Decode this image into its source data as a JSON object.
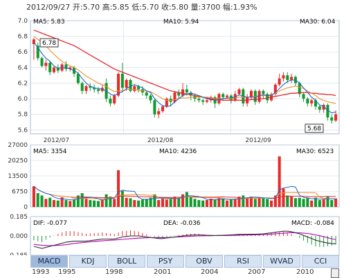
{
  "header": {
    "text": "2012/09/27 开:5.70 高:5.85 低:5.70 收:5.80 量:3700 幅:1.93%"
  },
  "colors": {
    "up": "#e62b2b",
    "down": "#119b2f",
    "ma5": "#1f65c9",
    "ma10": "#f18c2a",
    "ma30": "#e2262b",
    "grid": "#cfd8e6",
    "dif": "#2b2b2b",
    "dea": "#b000b0"
  },
  "tabs": [
    {
      "label": "MACD",
      "active": true
    },
    {
      "label": "KDJ"
    },
    {
      "label": "BOLL"
    },
    {
      "label": "PSY"
    },
    {
      "label": "OBV"
    },
    {
      "label": "RSI"
    },
    {
      "label": "WVAD"
    },
    {
      "label": "CCI"
    }
  ],
  "timeline": {
    "years": [
      "1993",
      "1995",
      "1998",
      "2001",
      "2004",
      "2007",
      "2010"
    ]
  },
  "chart_data": {
    "price_panel": {
      "type": "candlestick",
      "y_ticks": [
        "7.0",
        "6.8",
        "6.6",
        "6.4",
        "6.2",
        "6.0",
        "5.8",
        "5.6"
      ],
      "ylim": [
        5.55,
        7.0
      ],
      "x_labels": [
        "2012/07",
        "2012/08",
        "2012/09"
      ],
      "legend": {
        "ma5": "MA5: 5.83",
        "ma10": "MA10: 5.94",
        "ma30": "MA30: 6.04"
      },
      "annotations": {
        "high": "6.78",
        "low": "5.68"
      },
      "candles": [
        [
          6.7,
          6.76,
          6.78,
          6.5
        ],
        [
          6.68,
          6.52,
          6.72,
          6.49
        ],
        [
          6.52,
          6.42,
          6.54,
          6.4
        ],
        [
          6.42,
          6.46,
          6.5,
          6.36
        ],
        [
          6.46,
          6.34,
          6.48,
          6.3
        ],
        [
          6.34,
          6.4,
          6.42,
          6.32
        ],
        [
          6.4,
          6.36,
          6.44,
          6.33
        ],
        [
          6.36,
          6.44,
          6.46,
          6.34
        ],
        [
          6.44,
          6.38,
          6.48,
          6.35
        ],
        [
          6.38,
          6.4,
          6.42,
          6.35
        ],
        [
          6.4,
          6.32,
          6.42,
          6.28
        ],
        [
          6.32,
          6.2,
          6.34,
          6.18
        ],
        [
          6.2,
          6.1,
          6.22,
          6.06
        ],
        [
          6.1,
          6.16,
          6.18,
          6.06
        ],
        [
          6.16,
          6.14,
          6.2,
          6.1
        ],
        [
          6.14,
          6.12,
          6.18,
          6.08
        ],
        [
          6.12,
          6.1,
          6.15,
          6.06
        ],
        [
          6.1,
          6.14,
          6.18,
          6.08
        ],
        [
          6.2,
          6.0,
          6.26,
          5.96
        ],
        [
          6.0,
          5.94,
          6.04,
          5.9
        ],
        [
          5.94,
          6.04,
          6.06,
          5.92
        ],
        [
          6.04,
          6.32,
          6.34,
          6.02
        ],
        [
          6.32,
          6.14,
          6.46,
          6.1
        ],
        [
          6.14,
          6.24,
          6.26,
          6.1
        ],
        [
          6.24,
          6.1,
          6.26,
          6.08
        ],
        [
          6.1,
          6.16,
          6.18,
          6.08
        ],
        [
          6.16,
          6.12,
          6.18,
          6.08
        ],
        [
          6.12,
          6.08,
          6.16,
          6.04
        ],
        [
          6.08,
          6.04,
          6.1,
          6.0
        ],
        [
          6.04,
          5.98,
          6.06,
          5.94
        ],
        [
          5.98,
          5.8,
          6.0,
          5.76
        ],
        [
          5.8,
          5.84,
          5.88,
          5.75
        ],
        [
          5.84,
          5.9,
          5.92,
          5.82
        ],
        [
          5.9,
          6.0,
          6.02,
          5.88
        ],
        [
          6.0,
          5.96,
          6.04,
          5.9
        ],
        [
          5.96,
          6.08,
          6.1,
          5.94
        ],
        [
          6.08,
          6.04,
          6.12,
          6.0
        ],
        [
          6.04,
          6.12,
          6.2,
          6.02
        ],
        [
          6.12,
          6.08,
          6.18,
          6.04
        ],
        [
          6.08,
          6.04,
          6.1,
          5.98
        ],
        [
          6.04,
          6.0,
          6.06,
          5.96
        ],
        [
          6.0,
          5.98,
          6.02,
          5.95
        ],
        [
          5.98,
          5.96,
          6.0,
          5.92
        ],
        [
          5.96,
          5.98,
          6.02,
          5.94
        ],
        [
          5.98,
          6.02,
          6.04,
          5.95
        ],
        [
          6.02,
          5.94,
          6.04,
          5.88
        ],
        [
          5.94,
          6.06,
          6.08,
          5.92
        ],
        [
          6.06,
          6.02,
          6.08,
          5.98
        ],
        [
          6.02,
          6.04,
          6.06,
          6.0
        ],
        [
          6.04,
          5.98,
          6.06,
          5.94
        ],
        [
          5.98,
          6.06,
          6.1,
          5.96
        ],
        [
          6.06,
          6.12,
          6.14,
          6.04
        ],
        [
          6.12,
          5.94,
          6.14,
          5.9
        ],
        [
          5.94,
          6.02,
          6.06,
          5.9
        ],
        [
          6.02,
          6.1,
          6.12,
          5.98
        ],
        [
          6.1,
          5.96,
          6.12,
          5.92
        ],
        [
          5.96,
          6.1,
          6.12,
          5.94
        ],
        [
          6.1,
          6.06,
          6.12,
          6.0
        ],
        [
          6.06,
          5.98,
          6.08,
          5.94
        ],
        [
          5.98,
          6.06,
          6.08,
          5.96
        ],
        [
          6.06,
          6.18,
          6.2,
          6.04
        ],
        [
          6.18,
          6.26,
          6.32,
          6.16
        ],
        [
          6.26,
          6.3,
          6.34,
          6.22
        ],
        [
          6.3,
          6.24,
          6.34,
          6.2
        ],
        [
          6.24,
          6.28,
          6.32,
          6.2
        ],
        [
          6.28,
          6.2,
          6.3,
          6.16
        ],
        [
          6.2,
          6.06,
          6.22,
          6.02
        ],
        [
          6.06,
          6.0,
          6.08,
          5.96
        ],
        [
          6.0,
          5.94,
          6.02,
          5.9
        ],
        [
          5.94,
          5.98,
          6.0,
          5.9
        ],
        [
          5.98,
          5.9,
          6.0,
          5.86
        ],
        [
          5.9,
          5.86,
          5.92,
          5.82
        ],
        [
          5.86,
          5.92,
          5.94,
          5.82
        ],
        [
          5.92,
          5.76,
          5.94,
          5.72
        ],
        [
          5.76,
          5.72,
          5.8,
          5.68
        ],
        [
          5.72,
          5.8,
          5.85,
          5.7
        ]
      ],
      "ma5": [
        6.72,
        6.66,
        6.58,
        6.52,
        6.48,
        6.42,
        6.39,
        6.4,
        6.4,
        6.38,
        6.36,
        6.33,
        6.26,
        6.2,
        6.16,
        6.14,
        6.13,
        6.12,
        6.1,
        6.06,
        6.04,
        6.07,
        6.09,
        6.13,
        6.16,
        6.18,
        6.16,
        6.14,
        6.1,
        6.08,
        6.0,
        5.95,
        5.91,
        5.9,
        5.91,
        5.96,
        6.0,
        6.04,
        6.06,
        6.07,
        6.06,
        6.04,
        6.02,
        6.0,
        5.99,
        5.98,
        5.99,
        6.0,
        6.01,
        6.01,
        6.02,
        6.05,
        6.03,
        6.02,
        6.02,
        6.02,
        6.04,
        6.05,
        6.04,
        6.04,
        6.08,
        6.13,
        6.18,
        6.22,
        6.24,
        6.24,
        6.2,
        6.14,
        6.08,
        6.02,
        5.98,
        5.92,
        5.9,
        5.85,
        5.82,
        5.83
      ],
      "ma10": [
        6.8,
        6.76,
        6.72,
        6.68,
        6.62,
        6.57,
        6.52,
        6.48,
        6.45,
        6.42,
        6.4,
        6.37,
        6.33,
        6.29,
        6.26,
        6.23,
        6.2,
        6.18,
        6.16,
        6.12,
        6.09,
        6.1,
        6.1,
        6.12,
        6.12,
        6.12,
        6.11,
        6.1,
        6.1,
        6.09,
        6.06,
        6.03,
        6.0,
        5.98,
        5.98,
        5.99,
        6.0,
        6.01,
        6.01,
        6.02,
        6.02,
        6.02,
        6.02,
        6.02,
        6.01,
        6.0,
        6.0,
        6.0,
        6.0,
        6.0,
        6.01,
        6.02,
        6.02,
        6.02,
        6.02,
        6.03,
        6.04,
        6.04,
        6.04,
        6.05,
        6.07,
        6.1,
        6.12,
        6.14,
        6.15,
        6.16,
        6.15,
        6.13,
        6.1,
        6.07,
        6.04,
        6.0,
        5.98,
        5.96,
        5.95,
        5.94
      ],
      "ma30": [
        6.88,
        6.86,
        6.84,
        6.82,
        6.8,
        6.78,
        6.76,
        6.74,
        6.72,
        6.7,
        6.68,
        6.65,
        6.62,
        6.59,
        6.56,
        6.53,
        6.5,
        6.47,
        6.44,
        6.41,
        6.38,
        6.36,
        6.34,
        6.32,
        6.3,
        6.28,
        6.26,
        6.24,
        6.22,
        6.2,
        6.18,
        6.16,
        6.14,
        6.12,
        6.1,
        6.09,
        6.08,
        6.07,
        6.06,
        6.05,
        6.04,
        6.03,
        6.02,
        6.01,
        6.0,
        5.99,
        5.99,
        5.98,
        5.98,
        5.98,
        5.98,
        5.98,
        5.98,
        5.98,
        5.99,
        5.99,
        6.0,
        6.0,
        6.01,
        6.02,
        6.03,
        6.04,
        6.05,
        6.06,
        6.07,
        6.07,
        6.08,
        6.08,
        6.08,
        6.07,
        6.07,
        6.06,
        6.06,
        6.05,
        6.05,
        6.04
      ]
    },
    "volume_panel": {
      "type": "bar",
      "y_ticks": [
        "27000",
        "20250",
        "13500",
        "6750",
        "0"
      ],
      "ylim": [
        0,
        27000
      ],
      "legend": {
        "ma5": "MA5: 3354",
        "ma10": "MA10: 4236",
        "ma30": "MA30: 6523"
      },
      "values": [
        9000,
        6000,
        5000,
        3500,
        4000,
        3000,
        2800,
        4200,
        3000,
        2600,
        3200,
        5000,
        6000,
        3500,
        3000,
        2800,
        2600,
        3000,
        5500,
        4500,
        3500,
        16000,
        7000,
        4000,
        3800,
        3000,
        2800,
        3200,
        3500,
        4000,
        5500,
        3000,
        3800,
        3200,
        3600,
        4500,
        3800,
        5500,
        6500,
        4200,
        3500,
        3000,
        2800,
        3000,
        3600,
        3200,
        4000,
        3500,
        2800,
        3200,
        3600,
        4500,
        5000,
        3800,
        4500,
        3500,
        4200,
        3800,
        3500,
        2800,
        5000,
        22000,
        8000,
        5000,
        4500,
        3800,
        4000,
        3500,
        3800,
        2800,
        4000,
        3000,
        3200,
        4500,
        3000,
        3700
      ]
    },
    "macd_panel": {
      "type": "line",
      "y_ticks": [
        "0.185",
        "0.000",
        "-0.185"
      ],
      "ylim": [
        -0.185,
        0.185
      ],
      "legend": {
        "dif": "DIF: -0.077",
        "dea": "DEA: -0.036",
        "macd": "MACD: -0.084"
      },
      "dif": [
        -0.1,
        -0.11,
        -0.12,
        -0.11,
        -0.1,
        -0.09,
        -0.08,
        -0.07,
        -0.06,
        -0.055,
        -0.05,
        -0.05,
        -0.05,
        -0.05,
        -0.045,
        -0.04,
        -0.035,
        -0.03,
        -0.03,
        -0.03,
        -0.03,
        -0.02,
        -0.01,
        -0.005,
        0.0,
        0.0,
        0.0,
        -0.005,
        -0.01,
        -0.015,
        -0.02,
        -0.025,
        -0.025,
        -0.02,
        -0.015,
        -0.01,
        -0.005,
        0.0,
        0.005,
        0.008,
        0.01,
        0.01,
        0.008,
        0.006,
        0.005,
        0.004,
        0.005,
        0.006,
        0.008,
        0.01,
        0.012,
        0.015,
        0.015,
        0.015,
        0.016,
        0.016,
        0.018,
        0.02,
        0.025,
        0.03,
        0.035,
        0.04,
        0.045,
        0.045,
        0.04,
        0.03,
        0.02,
        0.005,
        -0.01,
        -0.025,
        -0.04,
        -0.05,
        -0.06,
        -0.068,
        -0.073,
        -0.077
      ],
      "dea": [
        -0.08,
        -0.085,
        -0.09,
        -0.092,
        -0.093,
        -0.092,
        -0.09,
        -0.087,
        -0.083,
        -0.078,
        -0.073,
        -0.068,
        -0.064,
        -0.06,
        -0.057,
        -0.054,
        -0.05,
        -0.047,
        -0.044,
        -0.041,
        -0.039,
        -0.036,
        -0.033,
        -0.03,
        -0.027,
        -0.024,
        -0.021,
        -0.019,
        -0.017,
        -0.016,
        -0.016,
        -0.016,
        -0.016,
        -0.015,
        -0.013,
        -0.011,
        -0.009,
        -0.007,
        -0.005,
        -0.003,
        -0.001,
        0.0,
        0.001,
        0.002,
        0.002,
        0.003,
        0.003,
        0.004,
        0.004,
        0.005,
        0.006,
        0.007,
        0.008,
        0.009,
        0.01,
        0.011,
        0.012,
        0.013,
        0.015,
        0.017,
        0.02,
        0.023,
        0.026,
        0.029,
        0.031,
        0.031,
        0.03,
        0.027,
        0.023,
        0.017,
        0.01,
        0.002,
        -0.007,
        -0.018,
        -0.027,
        -0.036
      ]
    }
  }
}
